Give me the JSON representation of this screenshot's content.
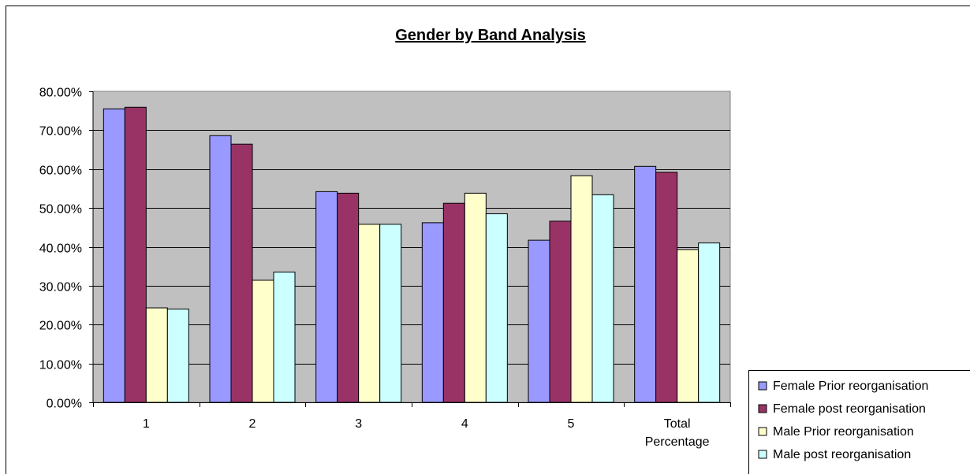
{
  "chart_data": {
    "type": "bar",
    "title": "Gender by Band Analysis",
    "categories": [
      "1",
      "2",
      "3",
      "4",
      "5",
      "Total Percentage"
    ],
    "category_lines": [
      [
        "1"
      ],
      [
        "2"
      ],
      [
        "3"
      ],
      [
        "4"
      ],
      [
        "5"
      ],
      [
        "Total",
        "Percentage"
      ]
    ],
    "series": [
      {
        "name": "Female Prior reorganisation",
        "color": "#9999ff",
        "values": [
          75.5,
          68.6,
          54.2,
          46.2,
          41.7,
          60.7
        ]
      },
      {
        "name": "Female post reorganisation",
        "color": "#993366",
        "values": [
          75.9,
          66.4,
          53.8,
          51.2,
          46.6,
          59.2
        ]
      },
      {
        "name": "Male Prior reorganisation",
        "color": "#ffffcc",
        "values": [
          24.3,
          31.4,
          45.8,
          53.8,
          58.3,
          39.3
        ]
      },
      {
        "name": "Male post reorganisation",
        "color": "#ccffff",
        "values": [
          24.0,
          33.5,
          45.8,
          48.5,
          53.4,
          41.0
        ]
      }
    ],
    "ylim": [
      0,
      80
    ],
    "yticks": [
      "0.00%",
      "10.00%",
      "20.00%",
      "30.00%",
      "40.00%",
      "50.00%",
      "60.00%",
      "70.00%",
      "80.00%"
    ],
    "grid": true,
    "plot_background": "#c0c0c0",
    "legend_position": "bottom-right",
    "xlabel": "",
    "ylabel": ""
  }
}
